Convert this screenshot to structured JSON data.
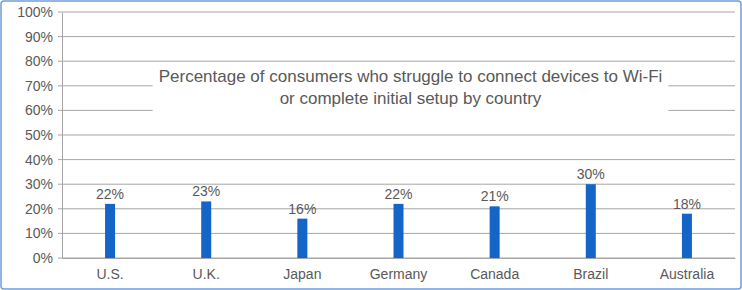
{
  "chart_data": {
    "type": "bar",
    "title": [
      "Percentage of consumers who struggle to connect devices to Wi-Fi",
      "or complete initial setup by country"
    ],
    "categories": [
      "U.S.",
      "U.K.",
      "Japan",
      "Germany",
      "Canada",
      "Brazil",
      "Australia"
    ],
    "values": [
      22,
      23,
      16,
      22,
      21,
      30,
      18
    ],
    "value_labels": [
      "22%",
      "23%",
      "16%",
      "22%",
      "21%",
      "30%",
      "18%"
    ],
    "data_labels": true,
    "color": "#1565c8",
    "ylim": [
      0,
      100
    ],
    "yticks": [
      {
        "value": 0,
        "label": "0%"
      },
      {
        "value": 10,
        "label": "10%"
      },
      {
        "value": 20,
        "label": "20%"
      },
      {
        "value": 30,
        "label": "30%"
      },
      {
        "value": 40,
        "label": "40%"
      },
      {
        "value": 50,
        "label": "50%"
      },
      {
        "value": 60,
        "label": "60%"
      },
      {
        "value": 70,
        "label": "70%"
      },
      {
        "value": 80,
        "label": "80%"
      },
      {
        "value": 90,
        "label": "90%"
      },
      {
        "value": 100,
        "label": "100%"
      }
    ],
    "grid": true
  }
}
